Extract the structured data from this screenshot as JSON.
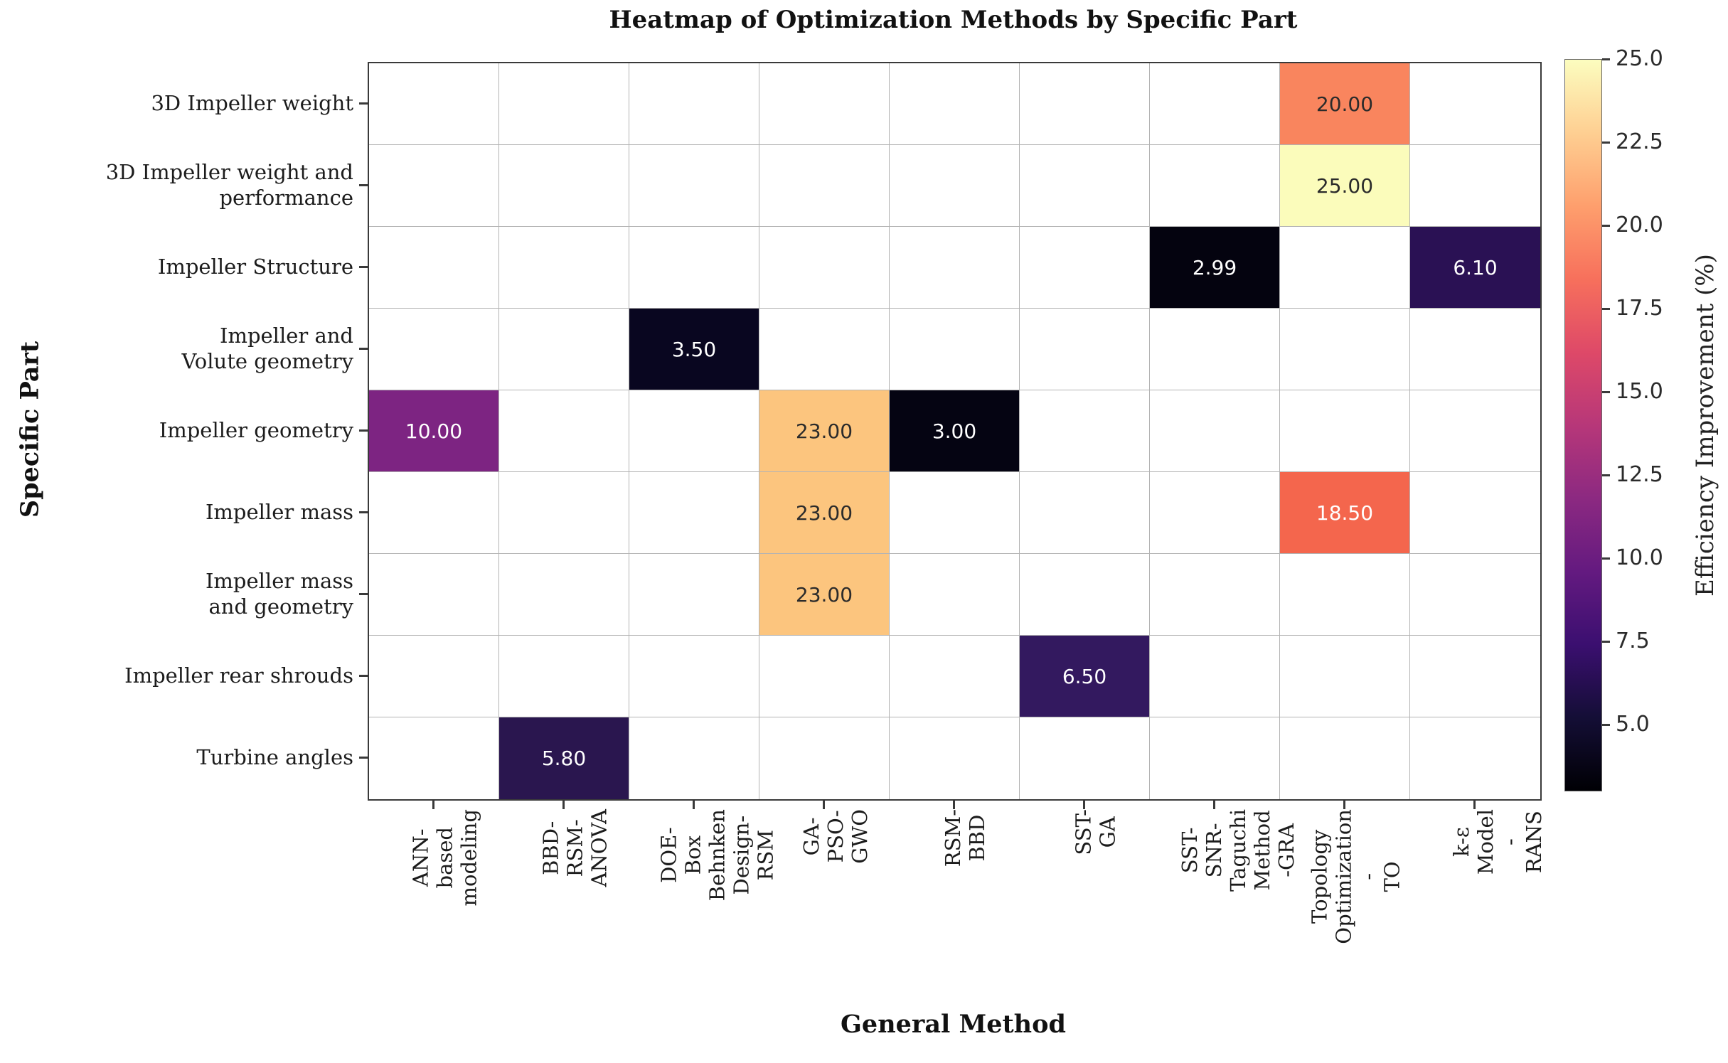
{
  "chart_data": {
    "type": "heatmap",
    "title": "Heatmap of Optimization Methods by Specific Part",
    "xlabel": "General Method",
    "ylabel": "Specific Part",
    "colormap": "magma",
    "vmin": 2.99,
    "vmax": 25.0,
    "grid": {
      "rows": 9,
      "cols": 9,
      "empty_color": "#ffffff",
      "gridline_color": "#b3b3b3"
    },
    "x_categories": [
      "ANN-based\nmodeling",
      "BBD-RSM-\nANOVA",
      "DOE-Box\nBehnken Design-\nRSM",
      "GA-PSO-\nGWO",
      "RSM-BBD",
      "SST-GA",
      "SST-SNR-\nTaguchi\nMethod -GRA",
      "Topology\nOptimization -\nTO",
      "k-ε Model -\nRANS"
    ],
    "y_categories": [
      "3D Impeller weight",
      "3D Impeller weight and\nperformance",
      "Impeller Structure",
      "Impeller and\nVolute geometry",
      "Impeller geometry",
      "Impeller mass",
      "Impeller mass\nand geometry",
      "Impeller rear shrouds",
      "Turbine angles"
    ],
    "cells": [
      {
        "row": 0,
        "col": 7,
        "x": "Topology Optimization - TO",
        "y": "3D Impeller weight",
        "value": "20.00",
        "bg": "#f9855e",
        "fg": "#2b2b2b"
      },
      {
        "row": 1,
        "col": 7,
        "x": "Topology Optimization - TO",
        "y": "3D Impeller weight and performance",
        "value": "25.00",
        "bg": "#fbfcbb",
        "fg": "#2b2b2b"
      },
      {
        "row": 2,
        "col": 6,
        "x": "SST-SNR-Taguchi Method -GRA",
        "y": "Impeller Structure",
        "value": "2.99",
        "bg": "#04030f",
        "fg": "#ffffff"
      },
      {
        "row": 2,
        "col": 8,
        "x": "k-ε Model - RANS",
        "y": "Impeller Structure",
        "value": "6.10",
        "bg": "#2a1154",
        "fg": "#ffffff"
      },
      {
        "row": 3,
        "col": 2,
        "x": "DOE-Box Behnken Design-RSM",
        "y": "Impeller and Volute geometry",
        "value": "3.50",
        "bg": "#090620",
        "fg": "#ffffff"
      },
      {
        "row": 4,
        "col": 0,
        "x": "ANN-based modeling",
        "y": "Impeller geometry",
        "value": "10.00",
        "bg": "#7d2482",
        "fg": "#ffffff"
      },
      {
        "row": 4,
        "col": 3,
        "x": "GA-PSO-GWO",
        "y": "Impeller geometry",
        "value": "23.00",
        "bg": "#fcc57e",
        "fg": "#2b2b2b"
      },
      {
        "row": 4,
        "col": 4,
        "x": "RSM-BBD",
        "y": "Impeller geometry",
        "value": "3.00",
        "bg": "#050412",
        "fg": "#ffffff"
      },
      {
        "row": 5,
        "col": 3,
        "x": "GA-PSO-GWO",
        "y": "Impeller mass",
        "value": "23.00",
        "bg": "#fcc57e",
        "fg": "#2b2b2b"
      },
      {
        "row": 5,
        "col": 7,
        "x": "Topology Optimization - TO",
        "y": "Impeller mass",
        "value": "18.50",
        "bg": "#f4664d",
        "fg": "#ffffff"
      },
      {
        "row": 6,
        "col": 3,
        "x": "GA-PSO-GWO",
        "y": "Impeller mass and geometry",
        "value": "23.00",
        "bg": "#fcc57e",
        "fg": "#2b2b2b"
      },
      {
        "row": 7,
        "col": 5,
        "x": "SST-GA",
        "y": "Impeller rear shrouds",
        "value": "6.50",
        "bg": "#33195f",
        "fg": "#ffffff"
      },
      {
        "row": 8,
        "col": 1,
        "x": "BBD-RSM-ANOVA",
        "y": "Turbine angles",
        "value": "5.80",
        "bg": "#2a164f",
        "fg": "#ffffff"
      }
    ],
    "colorbar": {
      "label": "Efficiency Improvement (%)",
      "ticks": [
        "25.0",
        "22.5",
        "20.0",
        "17.5",
        "15.0",
        "12.5",
        "10.0",
        "7.5",
        "5.0"
      ],
      "gradient_stops": [
        {
          "pos": 0.0,
          "color": "#fcfdbf"
        },
        {
          "pos": 0.1,
          "color": "#fecf92"
        },
        {
          "pos": 0.2,
          "color": "#fe9f6d"
        },
        {
          "pos": 0.3,
          "color": "#f7705c"
        },
        {
          "pos": 0.4,
          "color": "#de4968"
        },
        {
          "pos": 0.5,
          "color": "#b73779"
        },
        {
          "pos": 0.6,
          "color": "#8c2981"
        },
        {
          "pos": 0.7,
          "color": "#641a80"
        },
        {
          "pos": 0.8,
          "color": "#3b0f70"
        },
        {
          "pos": 0.9,
          "color": "#140e36"
        },
        {
          "pos": 1.0,
          "color": "#000004"
        }
      ]
    }
  }
}
